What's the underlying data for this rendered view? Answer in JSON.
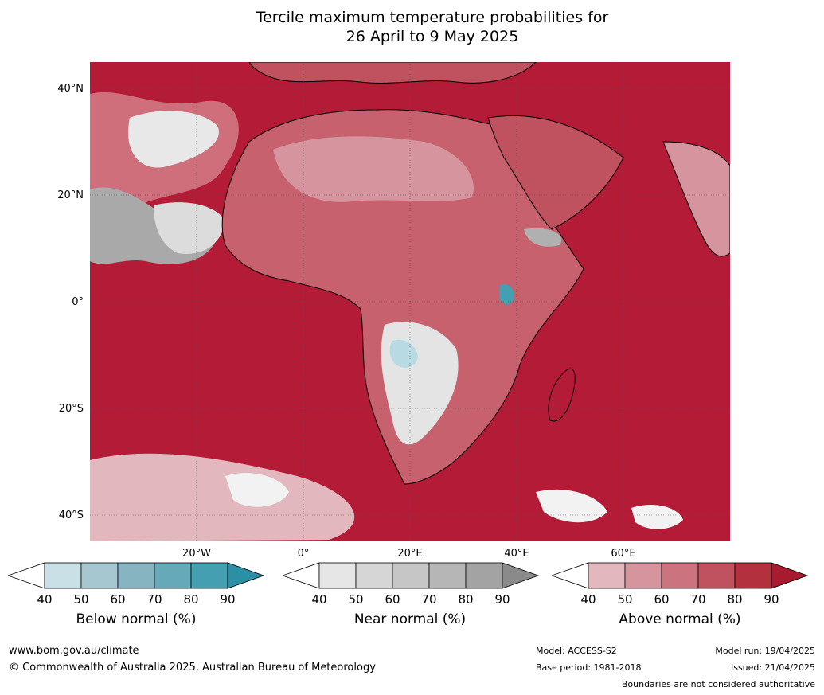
{
  "title": {
    "line1": "Tercile maximum temperature probabilities for",
    "line2": "26 April to 9 May 2025"
  },
  "map": {
    "lat_labels": [
      "40°N",
      "20°N",
      "0°",
      "20°S",
      "40°S"
    ],
    "lon_labels": [
      "20°W",
      "0°",
      "20°E",
      "40°E",
      "60°E"
    ]
  },
  "colorbars": [
    {
      "label": "Below normal (%)",
      "ticks": [
        "40",
        "50",
        "60",
        "70",
        "80",
        "90"
      ],
      "colors": [
        "#ffffff",
        "#c9e0e6",
        "#a6c7cf",
        "#86b5c1",
        "#66a9b8",
        "#449fb1",
        "#2b8fa6"
      ]
    },
    {
      "label": "Near normal (%)",
      "ticks": [
        "40",
        "50",
        "60",
        "70",
        "80",
        "90"
      ],
      "colors": [
        "#ffffff",
        "#e6e6e6",
        "#d6d6d6",
        "#c6c6c6",
        "#b6b6b6",
        "#a3a3a3",
        "#8a8a8a"
      ]
    },
    {
      "label": "Above normal (%)",
      "ticks": [
        "40",
        "50",
        "60",
        "70",
        "80",
        "90"
      ],
      "colors": [
        "#ffffff",
        "#e2b8be",
        "#d6959e",
        "#cb737e",
        "#c0525f",
        "#b3313f",
        "#a81b2e"
      ]
    }
  ],
  "footer": {
    "website": "www.bom.gov.au/climate",
    "copyright": "© Commonwealth of Australia 2025, Australian Bureau of Meteorology",
    "model": "Model: ACCESS-S2",
    "base_period": "Base period: 1981-2018",
    "model_run": "Model run: 19/04/2025",
    "issued": "Issued: 21/04/2025",
    "disclaimer": "Boundaries are not considered authoritative"
  }
}
